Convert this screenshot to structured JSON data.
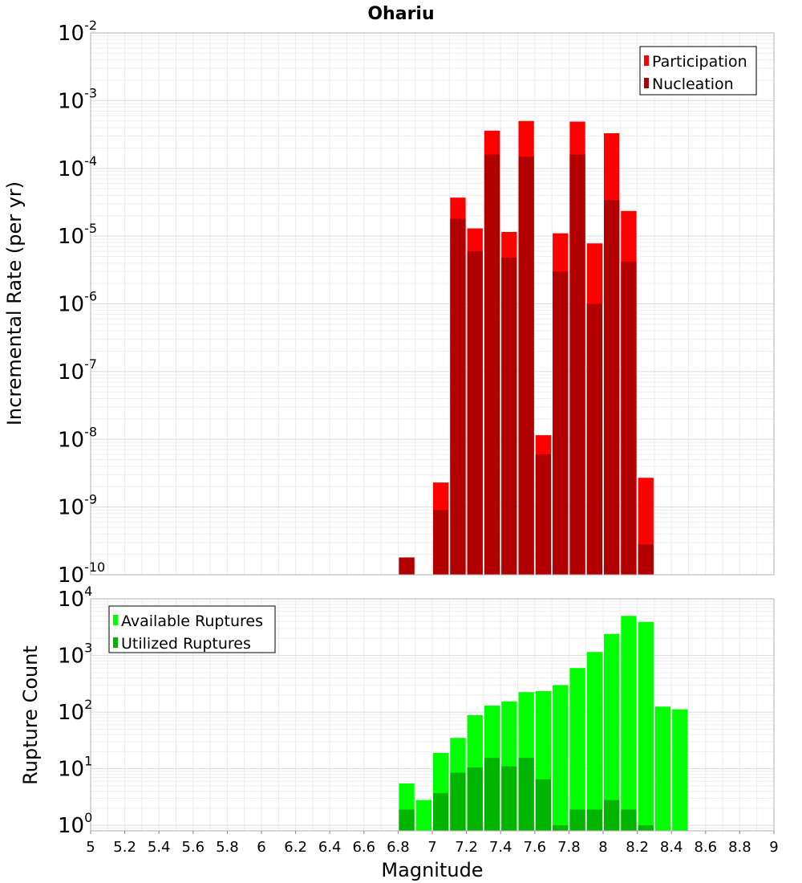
{
  "chart_data": [
    {
      "type": "bar",
      "title": "Ohariu",
      "ylabel": "Incremental Rate (per yr)",
      "yscale": "log",
      "ylim": [
        1e-10,
        0.01
      ],
      "xlim": [
        5,
        9
      ],
      "ytick_exponents": [
        -10,
        -9,
        -8,
        -7,
        -6,
        -5,
        -4,
        -3,
        -2
      ],
      "grid": true,
      "legend_position": "top-right",
      "colors": {
        "participation": "#ff0000",
        "nucleation": "#b20000"
      },
      "x": [
        6.85,
        7.05,
        7.15,
        7.25,
        7.35,
        7.45,
        7.55,
        7.65,
        7.75,
        7.85,
        7.95,
        8.05,
        8.15,
        8.25
      ],
      "series": [
        {
          "name": "Participation",
          "values": [
            1.8e-10,
            2.3e-09,
            3.7e-05,
            1.3e-05,
            0.00036,
            1.15e-05,
            0.0005,
            1.15e-08,
            1.1e-05,
            0.00049,
            7.8e-06,
            0.00033,
            2.35e-05,
            2.7e-09
          ]
        },
        {
          "name": "Nucleation",
          "values": [
            1.8e-10,
            9e-10,
            1.8e-05,
            6e-06,
            0.00016,
            4.8e-06,
            0.00015,
            6e-09,
            3e-06,
            0.00016,
            1e-06,
            3.4e-05,
            4.2e-06,
            2.8e-10
          ]
        }
      ]
    },
    {
      "type": "bar",
      "xlabel": "Magnitude",
      "ylabel": "Rupture Count",
      "yscale": "log",
      "ylim": [
        0.8,
        10000
      ],
      "xlim": [
        5,
        9
      ],
      "ytick_exponents": [
        0,
        1,
        2,
        3,
        4
      ],
      "x_ticks": [
        "5",
        "5.2",
        "5.4",
        "5.6",
        "5.8",
        "6",
        "6.2",
        "6.4",
        "6.6",
        "6.8",
        "7",
        "7.2",
        "7.4",
        "7.6",
        "7.8",
        "8",
        "8.2",
        "8.4",
        "8.6",
        "8.8",
        "9"
      ],
      "grid": true,
      "legend_position": "top-left",
      "colors": {
        "available": "#00ff00",
        "utilized": "#00b400"
      },
      "x": [
        6.85,
        6.95,
        7.05,
        7.15,
        7.25,
        7.35,
        7.45,
        7.55,
        7.65,
        7.75,
        7.85,
        7.95,
        8.05,
        8.15,
        8.25,
        8.35,
        8.45
      ],
      "series": [
        {
          "name": "Available Ruptures",
          "values": [
            5.5,
            2.8,
            19,
            35,
            88,
            130,
            155,
            225,
            235,
            300,
            600,
            1150,
            2400,
            5000,
            3900,
            125,
            112
          ]
        },
        {
          "name": "Utilized Ruptures",
          "values": [
            1.9,
            0,
            3.7,
            8.5,
            10.5,
            15.5,
            11,
            15.5,
            6.5,
            1,
            1.9,
            1.9,
            2.8,
            1.9,
            1,
            0,
            0
          ]
        }
      ]
    }
  ]
}
